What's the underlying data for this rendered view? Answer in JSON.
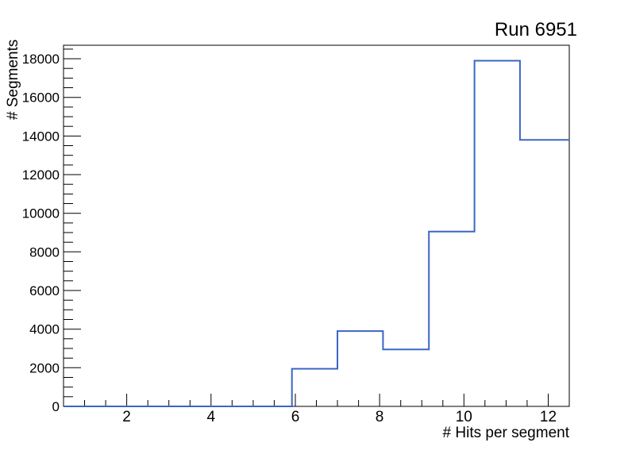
{
  "page": {
    "background": "#ffffff",
    "axis_color": "#000000",
    "text_color": "#000000"
  },
  "chart_data": {
    "type": "histogram-step",
    "title": "Run 6951",
    "xlabel": "# Hits per segment",
    "ylabel": "# Segments",
    "xlim": [
      0.5,
      12.5
    ],
    "ylim": [
      0,
      18700
    ],
    "grid": false,
    "legend": false,
    "line_color": "#3a66c4",
    "x_axis": {
      "major_ticks": [
        2,
        4,
        6,
        8,
        10,
        12
      ],
      "major_tick_labels": [
        "2",
        "4",
        "6",
        "8",
        "10",
        "12"
      ],
      "minor_tick_step": 0.5
    },
    "y_axis": {
      "major_ticks": [
        0,
        2000,
        4000,
        6000,
        8000,
        10000,
        12000,
        14000,
        16000,
        18000
      ],
      "major_tick_labels": [
        "0",
        "2000",
        "4000",
        "6000",
        "8000",
        "10000",
        "12000",
        "14000",
        "16000",
        "18000"
      ],
      "minor_tick_step": 500
    },
    "bin_edges": [
      0.5,
      5.92,
      7.0,
      8.08,
      9.17,
      10.25,
      11.33,
      12.5
    ],
    "counts": [
      0,
      1950,
      3900,
      2950,
      9050,
      17900,
      13800
    ]
  }
}
